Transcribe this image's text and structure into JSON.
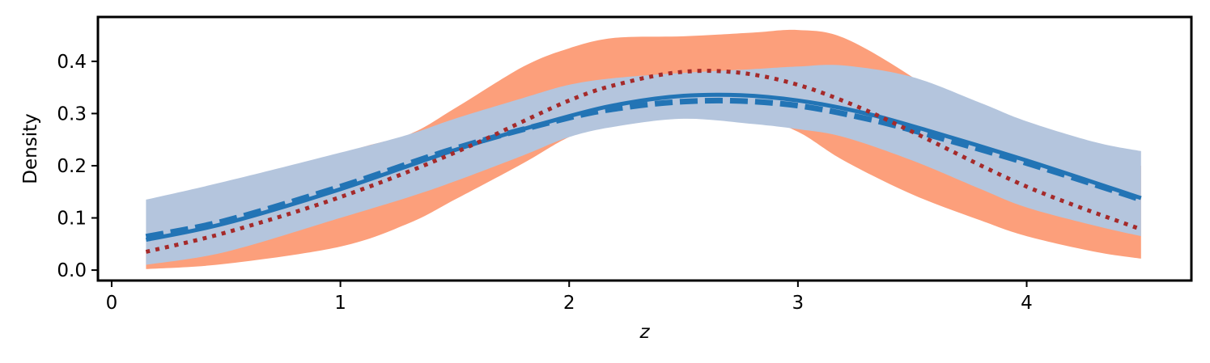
{
  "chart_data": {
    "type": "line",
    "xlabel": "z",
    "ylabel": "Density",
    "xlim": [
      -0.06,
      4.72
    ],
    "ylim": [
      -0.02,
      0.485
    ],
    "x_ticks": [
      0,
      1,
      2,
      3,
      4
    ],
    "x_tick_labels": [
      "0",
      "1",
      "2",
      "3",
      "4"
    ],
    "y_ticks": [
      0.0,
      0.1,
      0.2,
      0.3,
      0.4
    ],
    "y_tick_labels": [
      "0.0",
      "0.1",
      "0.2",
      "0.3",
      "0.4"
    ],
    "grid": false,
    "bands": [
      {
        "color": "#fc9f7b",
        "x": [
          0.15,
          0.5,
          1.0,
          1.3,
          1.5,
          1.8,
          2.0,
          2.2,
          2.5,
          2.8,
          3.0,
          3.2,
          3.5,
          3.8,
          4.0,
          4.3,
          4.5
        ],
        "upper": [
          0.035,
          0.105,
          0.22,
          0.26,
          0.31,
          0.39,
          0.425,
          0.445,
          0.448,
          0.455,
          0.46,
          0.445,
          0.37,
          0.275,
          0.24,
          0.21,
          0.2
        ],
        "lower": [
          0.002,
          0.012,
          0.045,
          0.09,
          0.135,
          0.205,
          0.255,
          0.285,
          0.31,
          0.295,
          0.265,
          0.21,
          0.145,
          0.095,
          0.065,
          0.035,
          0.022
        ]
      },
      {
        "color": "#b4c5dd",
        "x": [
          0.15,
          0.5,
          1.0,
          1.3,
          1.5,
          1.8,
          2.0,
          2.2,
          2.5,
          2.8,
          3.0,
          3.2,
          3.5,
          3.8,
          4.0,
          4.3,
          4.5
        ],
        "upper": [
          0.135,
          0.17,
          0.225,
          0.26,
          0.29,
          0.33,
          0.355,
          0.368,
          0.378,
          0.385,
          0.39,
          0.392,
          0.37,
          0.32,
          0.285,
          0.245,
          0.228
        ],
        "lower": [
          0.01,
          0.035,
          0.1,
          0.14,
          0.17,
          0.22,
          0.255,
          0.275,
          0.29,
          0.28,
          0.27,
          0.255,
          0.21,
          0.155,
          0.12,
          0.085,
          0.065
        ]
      }
    ],
    "series": [
      {
        "style": "solid",
        "color": "#2274b5",
        "x": [
          0.15,
          0.5,
          1.0,
          1.5,
          2.0,
          2.25,
          2.5,
          2.75,
          3.0,
          3.25,
          3.5,
          4.0,
          4.5
        ],
        "values": [
          0.058,
          0.09,
          0.155,
          0.23,
          0.295,
          0.32,
          0.334,
          0.335,
          0.325,
          0.305,
          0.276,
          0.21,
          0.138
        ]
      },
      {
        "style": "dashed",
        "color": "#2274b5",
        "x": [
          0.15,
          0.5,
          1.0,
          1.5,
          2.0,
          2.25,
          2.5,
          2.75,
          3.0,
          3.25,
          3.5,
          4.0,
          4.5
        ],
        "values": [
          0.064,
          0.095,
          0.16,
          0.233,
          0.292,
          0.312,
          0.323,
          0.324,
          0.315,
          0.295,
          0.268,
          0.205,
          0.135
        ]
      },
      {
        "style": "dotted",
        "color": "#a52a2a",
        "x": [
          0.15,
          0.5,
          1.0,
          1.5,
          2.0,
          2.25,
          2.5,
          2.75,
          3.0,
          3.25,
          3.5,
          4.0,
          4.5
        ],
        "values": [
          0.035,
          0.072,
          0.14,
          0.225,
          0.325,
          0.36,
          0.38,
          0.378,
          0.355,
          0.315,
          0.265,
          0.16,
          0.078
        ]
      }
    ]
  }
}
